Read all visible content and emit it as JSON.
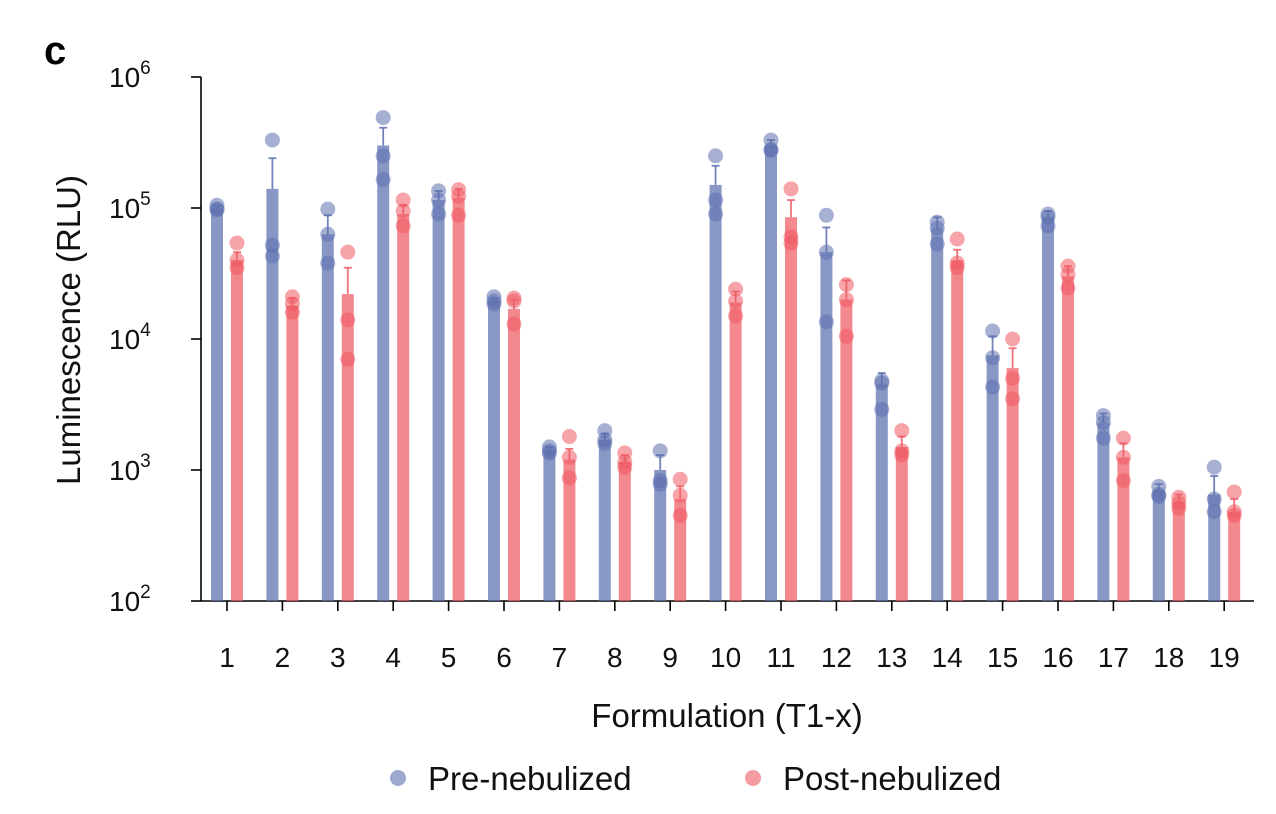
{
  "panel_label": "c",
  "colors": {
    "pre": "#5c6fae",
    "post": "#ef5a63"
  },
  "chart_data": {
    "type": "bar",
    "yscale": "log",
    "ylim": [
      100,
      1000000
    ],
    "xlabel": "Formulation (T1-x)",
    "ylabel": "Luminescence (RLU)",
    "y_ticks": [
      {
        "base": "10",
        "exp": "2",
        "value": 100
      },
      {
        "base": "10",
        "exp": "3",
        "value": 1000
      },
      {
        "base": "10",
        "exp": "4",
        "value": 10000
      },
      {
        "base": "10",
        "exp": "5",
        "value": 100000
      },
      {
        "base": "10",
        "exp": "6",
        "value": 1000000
      }
    ],
    "categories": [
      "1",
      "2",
      "3",
      "4",
      "5",
      "6",
      "7",
      "8",
      "9",
      "10",
      "11",
      "12",
      "13",
      "14",
      "15",
      "16",
      "17",
      "18",
      "19"
    ],
    "legend": {
      "position": "bottom"
    },
    "series": [
      {
        "name": "Pre-nebulized",
        "key": "pre",
        "values": [
          98000,
          140000,
          63000,
          300000,
          115000,
          19500,
          1400,
          1700,
          1000,
          150000,
          300000,
          46000,
          4500,
          70000,
          7500,
          85000,
          2300,
          700,
          650
        ],
        "errors": [
          5000,
          100000,
          25000,
          110000,
          20000,
          1000,
          100,
          200,
          300,
          60000,
          30000,
          25000,
          1000,
          15000,
          3000,
          10000,
          400,
          80,
          250
        ],
        "points": [
          [
            105000,
            98000,
            97000
          ],
          [
            330000,
            52000,
            43000
          ],
          [
            98000,
            63000,
            38000
          ],
          [
            490000,
            250000,
            165000
          ],
          [
            135000,
            115000,
            90000
          ],
          [
            21000,
            19500,
            18500
          ],
          [
            1500,
            1400,
            1350
          ],
          [
            2000,
            1700,
            1600
          ],
          [
            1400,
            830,
            780
          ],
          [
            250000,
            115000,
            90000
          ],
          [
            330000,
            280000,
            275000
          ],
          [
            88000,
            46000,
            13500
          ],
          [
            4800,
            4600,
            2900
          ],
          [
            78000,
            70000,
            53000
          ],
          [
            11500,
            7200,
            4300
          ],
          [
            90000,
            85000,
            73000
          ],
          [
            2600,
            2300,
            1750
          ],
          [
            750,
            650,
            630
          ],
          [
            1050,
            600,
            480
          ]
        ]
      },
      {
        "name": "Post-nebulized",
        "key": "post",
        "values": [
          40000,
          18000,
          22000,
          90000,
          120000,
          17000,
          1200,
          1150,
          600,
          19000,
          85000,
          20000,
          1500,
          40000,
          6000,
          30000,
          1250,
          570,
          480
        ],
        "errors": [
          6000,
          2500,
          13000,
          15000,
          20000,
          3000,
          250,
          150,
          150,
          4000,
          30000,
          8000,
          300,
          8000,
          2500,
          6000,
          350,
          80,
          120
        ],
        "points": [
          [
            54000,
            40000,
            35000
          ],
          [
            21000,
            18500,
            16000
          ],
          [
            46000,
            14000,
            7000
          ],
          [
            115000,
            95000,
            73000
          ],
          [
            138000,
            123000,
            88000
          ],
          [
            20500,
            19500,
            13000
          ],
          [
            1800,
            1250,
            870
          ],
          [
            1350,
            1150,
            1050
          ],
          [
            850,
            640,
            450
          ],
          [
            24000,
            19500,
            15000
          ],
          [
            140000,
            60000,
            54000
          ],
          [
            26000,
            20000,
            10500
          ],
          [
            2000,
            1400,
            1300
          ],
          [
            58000,
            38000,
            35000
          ],
          [
            10000,
            5000,
            3500
          ],
          [
            36000,
            31000,
            24500
          ],
          [
            1750,
            1250,
            830
          ],
          [
            620,
            560,
            510
          ],
          [
            680,
            480,
            450
          ]
        ]
      }
    ]
  }
}
